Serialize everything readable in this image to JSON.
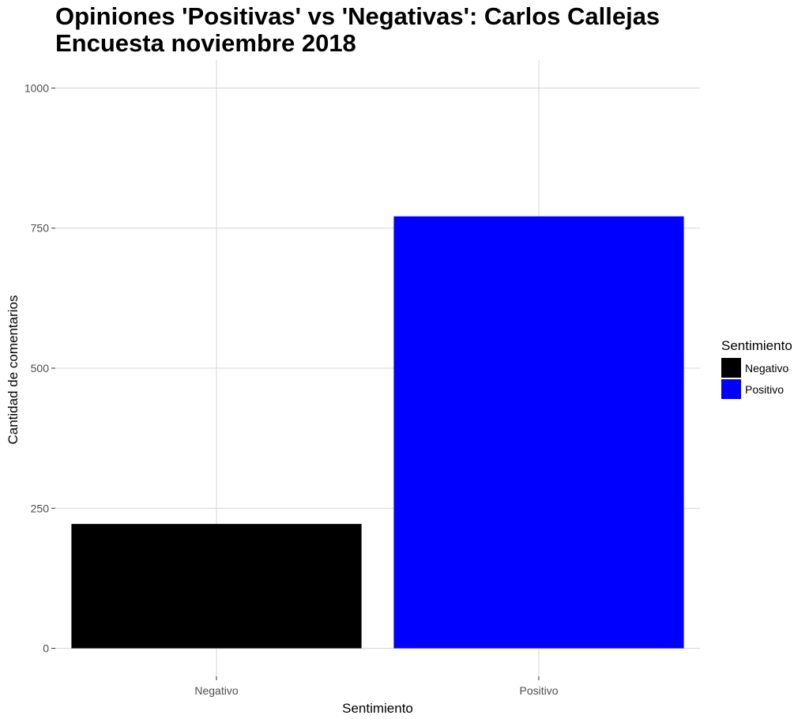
{
  "chart_data": {
    "type": "bar",
    "title": "Opiniones 'Positivas' vs 'Negativas': Carlos Callejas",
    "subtitle": "Encuesta noviembre 2018",
    "xlabel": "Sentimiento",
    "ylabel": "Cantidad de comentarios",
    "categories": [
      "Negativo",
      "Positivo"
    ],
    "values": [
      222,
      771
    ],
    "colors": [
      "#000000",
      "#0000ff"
    ],
    "ylim": [
      -50,
      1050
    ],
    "yticks": [
      0,
      250,
      500,
      750,
      1000
    ],
    "grid": true,
    "grid_color": "#d9d9d9",
    "legend": {
      "title": "Sentimiento",
      "position": "right",
      "items": [
        {
          "label": "Negativo",
          "color": "#000000"
        },
        {
          "label": "Positivo",
          "color": "#0000ff"
        }
      ]
    }
  }
}
